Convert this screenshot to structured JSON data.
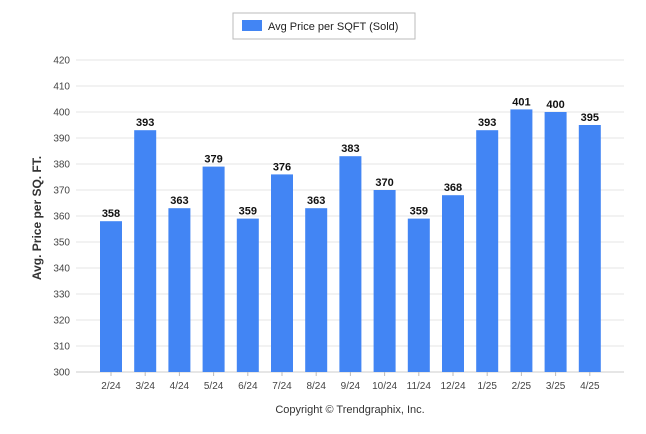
{
  "chart_data": {
    "type": "bar",
    "categories": [
      "2/24",
      "3/24",
      "4/24",
      "5/24",
      "6/24",
      "7/24",
      "8/24",
      "9/24",
      "10/24",
      "11/24",
      "12/24",
      "1/25",
      "2/25",
      "3/25",
      "4/25"
    ],
    "series": [
      {
        "name": "Avg Price per SQFT (Sold)",
        "values": [
          358,
          393,
          363,
          379,
          359,
          376,
          363,
          383,
          370,
          359,
          368,
          393,
          401,
          400,
          395
        ],
        "color": "#4285f4"
      }
    ],
    "ylabel": "Avg. Price per SQ. FT.",
    "xlabel": "",
    "ylim": [
      300,
      420
    ],
    "yticks": [
      300,
      310,
      320,
      330,
      340,
      350,
      360,
      370,
      380,
      390,
      400,
      410,
      420
    ],
    "grid": true,
    "legend_position": "top-center",
    "data_labels": true
  },
  "footer": {
    "text": "Copyright © Trendgraphix, Inc."
  }
}
